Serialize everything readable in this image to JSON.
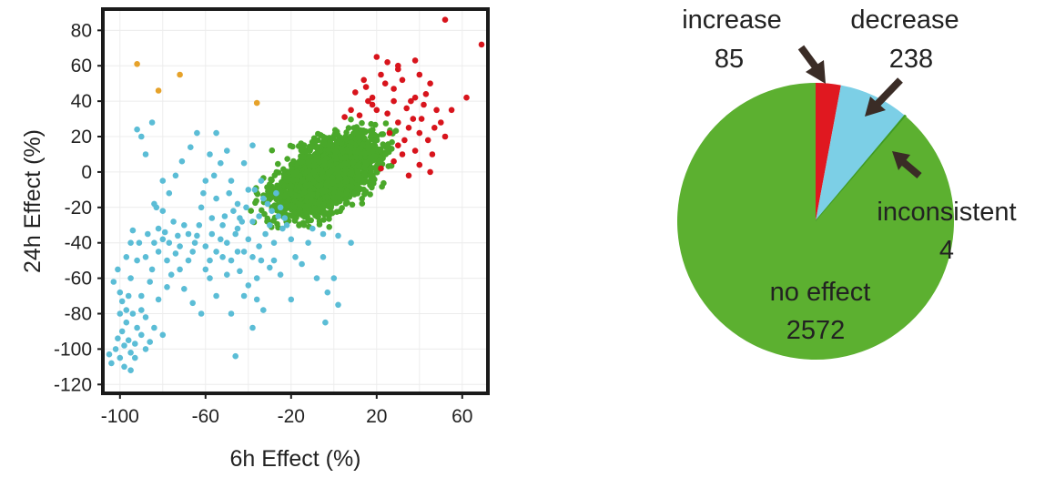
{
  "chart_data": [
    {
      "type": "scatter",
      "xlabel": "6h Effect (%)",
      "ylabel": "24h Effect (%)",
      "xlim": [
        -108,
        72
      ],
      "ylim": [
        -125,
        92
      ],
      "xticks": [
        -100,
        -60,
        -20,
        20,
        60
      ],
      "yticks": [
        80,
        60,
        40,
        20,
        0,
        -20,
        -40,
        -60,
        -80,
        -100,
        -120
      ],
      "grid": true,
      "colors": {
        "no_effect": "#4aa82a",
        "increase": "#d8141c",
        "decrease": "#5bbdd6",
        "inconsistent": "#e6a22a"
      },
      "series": [
        {
          "category": "no_effect",
          "color": "#4aa82a",
          "approx_count": 2572,
          "cluster": {
            "center": [
              -3,
              -2
            ],
            "spread_x": 11,
            "spread_y": 10.5,
            "x_range": [
              -40,
              30
            ],
            "y_range": [
              -32,
              30
            ]
          }
        },
        {
          "category": "increase",
          "color": "#d8141c",
          "points": [
            [
              52,
              86
            ],
            [
              69,
              72
            ],
            [
              20,
              65
            ],
            [
              25,
              62
            ],
            [
              30,
              60
            ],
            [
              38,
              63
            ],
            [
              22,
              55
            ],
            [
              32,
              52
            ],
            [
              40,
              55
            ],
            [
              45,
              50
            ],
            [
              15,
              48
            ],
            [
              10,
              45
            ],
            [
              28,
              47
            ],
            [
              18,
              42
            ],
            [
              36,
              40
            ],
            [
              42,
              38
            ],
            [
              48,
              35
            ],
            [
              20,
              35
            ],
            [
              25,
              33
            ],
            [
              5,
              31
            ],
            [
              12,
              32
            ],
            [
              30,
              28
            ],
            [
              35,
              25
            ],
            [
              40,
              22
            ],
            [
              44,
              18
            ],
            [
              38,
              12
            ],
            [
              32,
              10
            ],
            [
              28,
              6
            ],
            [
              22,
              2
            ],
            [
              40,
              4
            ],
            [
              45,
              0
            ],
            [
              35,
              -2
            ],
            [
              62,
              42
            ],
            [
              55,
              35
            ],
            [
              50,
              28
            ],
            [
              26,
              22
            ],
            [
              30,
              15
            ],
            [
              46,
              10
            ],
            [
              18,
              38
            ],
            [
              34,
              36
            ],
            [
              43,
              44
            ],
            [
              14,
              52
            ],
            [
              24,
              50
            ],
            [
              8,
              35
            ],
            [
              28,
              40
            ],
            [
              37,
              30
            ],
            [
              41,
              30
            ],
            [
              47,
              25
            ],
            [
              52,
              20
            ],
            [
              33,
              18
            ],
            [
              38,
              42
            ],
            [
              30,
              58
            ],
            [
              16,
              40
            ]
          ]
        },
        {
          "category": "decrease",
          "color": "#5bbdd6",
          "points": [
            [
              -95,
              -102
            ],
            [
              -98,
              -110
            ],
            [
              -100,
              -105
            ],
            [
              -102,
              -100
            ],
            [
              -96,
              -95
            ],
            [
              -99,
              -90
            ],
            [
              -93,
              -97
            ],
            [
              -90,
              -92
            ],
            [
              -97,
              -85
            ],
            [
              -94,
              -80
            ],
            [
              -100,
              -80
            ],
            [
              -88,
              -100
            ],
            [
              -104,
              -108
            ],
            [
              -92,
              -88
            ],
            [
              -101,
              -94
            ],
            [
              -95,
              -112
            ],
            [
              -90,
              -78
            ],
            [
              -98,
              -98
            ],
            [
              -105,
              -103
            ],
            [
              -86,
              -96
            ],
            [
              -93,
              -105
            ],
            [
              -97,
              -78
            ],
            [
              -100,
              -68
            ],
            [
              -95,
              -60
            ],
            [
              -90,
              -70
            ],
            [
              -92,
              -50
            ],
            [
              -85,
              -55
            ],
            [
              -82,
              -45
            ],
            [
              -80,
              -38
            ],
            [
              -78,
              -50
            ],
            [
              -72,
              -42
            ],
            [
              -70,
              -30
            ],
            [
              -65,
              -40
            ],
            [
              -60,
              -55
            ],
            [
              -57,
              -35
            ],
            [
              -55,
              -45
            ],
            [
              -52,
              -30
            ],
            [
              -50,
              -40
            ],
            [
              -48,
              -50
            ],
            [
              -45,
              -32
            ],
            [
              -42,
              -45
            ],
            [
              -40,
              -38
            ],
            [
              -38,
              -28
            ],
            [
              -35,
              -42
            ],
            [
              -32,
              -35
            ],
            [
              -30,
              -30
            ],
            [
              -28,
              -40
            ],
            [
              -26,
              -25
            ],
            [
              -24,
              -32
            ],
            [
              -55,
              -15
            ],
            [
              -60,
              -5
            ],
            [
              -62,
              -20
            ],
            [
              -58,
              10
            ],
            [
              -55,
              22
            ],
            [
              -50,
              12
            ],
            [
              -48,
              -5
            ],
            [
              -45,
              -18
            ],
            [
              -42,
              5
            ],
            [
              -40,
              -10
            ],
            [
              -38,
              15
            ],
            [
              -35,
              -25
            ],
            [
              -33,
              -15
            ],
            [
              -46,
              -35
            ],
            [
              -68,
              -35
            ],
            [
              -75,
              -28
            ],
            [
              -80,
              -5
            ],
            [
              -83,
              -20
            ],
            [
              -88,
              10
            ],
            [
              -90,
              20
            ],
            [
              -92,
              24
            ],
            [
              -85,
              28
            ],
            [
              -84,
              -18
            ],
            [
              -79,
              -34
            ],
            [
              -73,
              -36
            ],
            [
              -76,
              -58
            ],
            [
              -70,
              -66
            ],
            [
              -66,
              -74
            ],
            [
              -62,
              -80
            ],
            [
              -58,
              -60
            ],
            [
              -50,
              -58
            ],
            [
              -44,
              -56
            ],
            [
              -40,
              -64
            ],
            [
              -36,
              -72
            ],
            [
              -33,
              -78
            ],
            [
              -38,
              -88
            ],
            [
              -46,
              -104
            ],
            [
              -55,
              -70
            ],
            [
              -48,
              -80
            ],
            [
              -42,
              -70
            ],
            [
              -36,
              -60
            ],
            [
              -30,
              -54
            ],
            [
              -25,
              -58
            ],
            [
              -18,
              -48
            ],
            [
              -12,
              -40
            ],
            [
              -5,
              -35
            ],
            [
              2,
              -36
            ],
            [
              8,
              -40
            ],
            [
              -5,
              -48
            ],
            [
              0,
              -60
            ],
            [
              -3,
              -68
            ],
            [
              2,
              -75
            ],
            [
              -4,
              -85
            ],
            [
              -20,
              -72
            ],
            [
              -15,
              -52
            ],
            [
              -8,
              -60
            ],
            [
              -10,
              -32
            ],
            [
              -20,
              -38
            ],
            [
              -22,
              -30
            ],
            [
              -28,
              -50
            ],
            [
              -34,
              -50
            ],
            [
              -38,
              -48
            ],
            [
              -43,
              -28
            ],
            [
              -47,
              -22
            ],
            [
              -51,
              -25
            ],
            [
              -53,
              -38
            ],
            [
              -57,
              -26
            ],
            [
              -63,
              -30
            ],
            [
              -66,
              -45
            ],
            [
              -72,
              -55
            ],
            [
              -78,
              -65
            ],
            [
              -82,
              -72
            ],
            [
              -86,
              -62
            ],
            [
              -88,
              -48
            ],
            [
              -91,
              -40
            ],
            [
              -94,
              -33
            ],
            [
              -87,
              -35
            ],
            [
              -84,
              -40
            ],
            [
              -80,
              -22
            ],
            [
              -77,
              -12
            ],
            [
              -74,
              -2
            ],
            [
              -71,
              6
            ],
            [
              -67,
              14
            ],
            [
              -64,
              22
            ],
            [
              -61,
              -12
            ],
            [
              -56,
              -2
            ],
            [
              -53,
              5
            ],
            [
              -49,
              -12
            ],
            [
              -44,
              -26
            ],
            [
              -41,
              -20
            ],
            [
              -37,
              -10
            ],
            [
              -34,
              -5
            ],
            [
              -31,
              -18
            ],
            [
              -29,
              -22
            ],
            [
              -27,
              -12
            ],
            [
              -25,
              -20
            ],
            [
              -23,
              -26
            ],
            [
              -45,
              -45
            ],
            [
              -52,
              -48
            ],
            [
              -58,
              -50
            ],
            [
              -60,
              -42
            ],
            [
              -64,
              -36
            ],
            [
              -68,
              -50
            ],
            [
              -74,
              -46
            ],
            [
              -77,
              -40
            ],
            [
              -82,
              -32
            ],
            [
              -95,
              -40
            ],
            [
              -97,
              -48
            ],
            [
              -101,
              -55
            ],
            [
              -103,
              -62
            ],
            [
              -99,
              -73
            ],
            [
              -96,
              -70
            ],
            [
              -88,
              -82
            ],
            [
              -84,
              -88
            ],
            [
              -80,
              -92
            ]
          ]
        },
        {
          "category": "inconsistent",
          "color": "#e6a22a",
          "points": [
            [
              -92,
              61
            ],
            [
              -82,
              46
            ],
            [
              -72,
              55
            ],
            [
              -36,
              39
            ]
          ]
        }
      ]
    },
    {
      "type": "pie",
      "slices": [
        {
          "label": "increase",
          "value": 85,
          "color": "#e01820"
        },
        {
          "label": "decrease",
          "value": 238,
          "color": "#7ccfe6"
        },
        {
          "label": "inconsistent",
          "value": 4,
          "color": "#4aa82a"
        },
        {
          "label": "no effect",
          "value": 2572,
          "color": "#5cb030"
        }
      ]
    }
  ]
}
